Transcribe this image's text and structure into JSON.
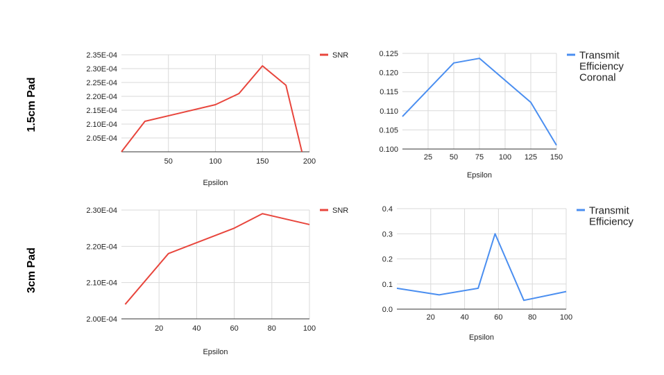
{
  "row_labels": [
    "1.5cm Pad",
    "3cm Pad"
  ],
  "colors": {
    "snr": "#e8453c",
    "efficiency": "#4a8ef0",
    "grid": "#d9d9d9"
  },
  "chart_data": [
    {
      "type": "line",
      "row": "1.5cm Pad",
      "xlabel": "Epsilon",
      "ylabel": "",
      "xlim": [
        0,
        200
      ],
      "ylim": [
        0.0002,
        0.000235
      ],
      "x_ticks": [
        50,
        100,
        150,
        200
      ],
      "x_tick_labels": [
        "50",
        "100",
        "150",
        "200"
      ],
      "y_ticks": [
        0.000205,
        0.00021,
        0.000215,
        0.00022,
        0.000225,
        0.00023,
        0.000235
      ],
      "y_tick_labels": [
        "2.05E-04",
        "2.10E-04",
        "2.15E-04",
        "2.20E-04",
        "2.25E-04",
        "2.30E-04",
        "2.35E-04"
      ],
      "grid": true,
      "legend_position": "right",
      "series": [
        {
          "name": "SNR",
          "color": "#e8453c",
          "x": [
            0,
            25,
            100,
            125,
            150,
            175,
            192
          ],
          "y": [
            0.0002,
            0.000211,
            0.000217,
            0.000221,
            0.000231,
            0.000224,
            0.0002
          ]
        }
      ]
    },
    {
      "type": "line",
      "row": "1.5cm Pad",
      "xlabel": "Epsilon",
      "ylabel": "",
      "xlim": [
        0,
        150
      ],
      "ylim": [
        0.1,
        0.125
      ],
      "x_ticks": [
        25,
        50,
        75,
        100,
        125,
        150
      ],
      "x_tick_labels": [
        "25",
        "50",
        "75",
        "100",
        "125",
        "150"
      ],
      "y_ticks": [
        0.1,
        0.105,
        0.11,
        0.115,
        0.12,
        0.125
      ],
      "y_tick_labels": [
        "0.100",
        "0.105",
        "0.110",
        "0.115",
        "0.120",
        "0.125"
      ],
      "grid": true,
      "legend_position": "right",
      "series": [
        {
          "name": "Transmit Efficiency Coronal",
          "color": "#4a8ef0",
          "x": [
            0,
            50,
            75,
            125,
            150
          ],
          "y": [
            0.1085,
            0.1225,
            0.1237,
            0.1122,
            0.101
          ]
        }
      ]
    },
    {
      "type": "line",
      "row": "3cm Pad",
      "xlabel": "Epsilon",
      "ylabel": "",
      "xlim": [
        0,
        100
      ],
      "ylim": [
        0.0002,
        0.00023
      ],
      "x_ticks": [
        20,
        40,
        60,
        80,
        100
      ],
      "x_tick_labels": [
        "20",
        "40",
        "60",
        "80",
        "100"
      ],
      "y_ticks": [
        0.0002,
        0.00021,
        0.00022,
        0.00023
      ],
      "y_tick_labels": [
        "2.00E-04",
        "2.10E-04",
        "2.20E-04",
        "2.30E-04"
      ],
      "grid": true,
      "legend_position": "right",
      "series": [
        {
          "name": "SNR",
          "color": "#e8453c",
          "x": [
            2,
            25,
            60,
            75,
            100
          ],
          "y": [
            0.000204,
            0.000218,
            0.000225,
            0.000229,
            0.000226
          ]
        }
      ]
    },
    {
      "type": "line",
      "row": "3cm Pad",
      "xlabel": "Epsilon",
      "ylabel": "",
      "xlim": [
        0,
        100
      ],
      "ylim": [
        0.0,
        0.4
      ],
      "x_ticks": [
        20,
        40,
        60,
        80,
        100
      ],
      "x_tick_labels": [
        "20",
        "40",
        "60",
        "80",
        "100"
      ],
      "y_ticks": [
        0.0,
        0.1,
        0.2,
        0.3,
        0.4
      ],
      "y_tick_labels": [
        "0.0",
        "0.1",
        "0.2",
        "0.3",
        "0.4"
      ],
      "grid": true,
      "legend_position": "right",
      "series": [
        {
          "name": "Transmit Efficiency",
          "color": "#4a8ef0",
          "x": [
            0,
            25,
            48,
            58,
            75,
            100
          ],
          "y": [
            0.083,
            0.057,
            0.083,
            0.3,
            0.035,
            0.07
          ]
        }
      ]
    }
  ]
}
